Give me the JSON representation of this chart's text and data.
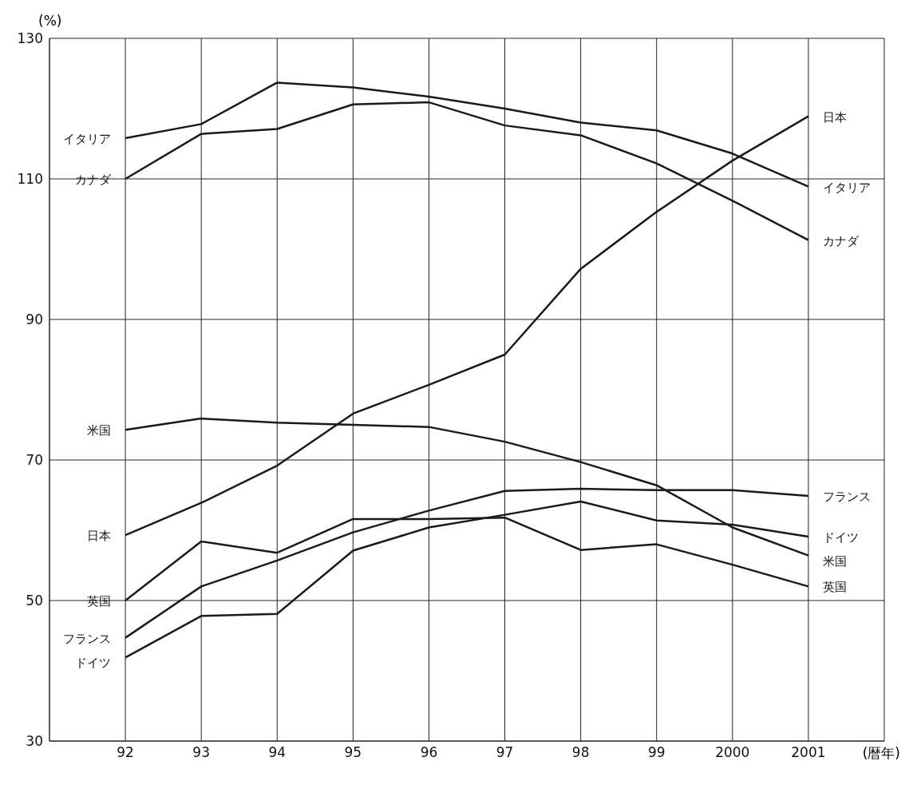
{
  "chart_data": {
    "type": "line",
    "ylabel": "(%)",
    "xlabel": "(暦年)",
    "categories": [
      "92",
      "93",
      "94",
      "95",
      "96",
      "97",
      "98",
      "99",
      "2000",
      "2001"
    ],
    "series": [
      {
        "name": "日本",
        "color": "#1a1a1a",
        "values": [
          59.3,
          63.9,
          69.2,
          76.6,
          80.7,
          85,
          97.2,
          105.3,
          112.6,
          118.9
        ]
      },
      {
        "name": "イタリア",
        "color": "#1a1a1a",
        "values": [
          115.8,
          117.8,
          123.7,
          123,
          121.7,
          120,
          118,
          116.9,
          113.6,
          108.9
        ]
      },
      {
        "name": "カナダ",
        "color": "#1a1a1a",
        "values": [
          110,
          116.4,
          117.1,
          120.6,
          120.9,
          117.6,
          116.2,
          112.2,
          106.9,
          101.3
        ]
      },
      {
        "name": "米国",
        "color": "#1a1a1a",
        "values": [
          74.3,
          75.9,
          75.3,
          75,
          74.7,
          72.6,
          69.7,
          66.4,
          60.4,
          56.4
        ]
      },
      {
        "name": "フランス",
        "color": "#1a1a1a",
        "values": [
          44.7,
          52,
          55.7,
          59.7,
          62.8,
          65.6,
          65.9,
          65.7,
          65.7,
          64.9
        ]
      },
      {
        "name": "ドイツ",
        "color": "#1a1a1a",
        "values": [
          41.9,
          47.8,
          48.1,
          57.1,
          60.4,
          62.2,
          64.1,
          61.4,
          60.8,
          59.1
        ]
      },
      {
        "name": "英国",
        "color": "#1a1a1a",
        "values": [
          50,
          58.4,
          56.8,
          61.6,
          61.6,
          61.8,
          57.2,
          58,
          55.1,
          52
        ]
      }
    ],
    "ylim": [
      30,
      130
    ],
    "yticks": [
      30,
      50,
      70,
      90,
      110,
      130
    ],
    "grid": true,
    "marker": "none",
    "line_style": "solid"
  }
}
